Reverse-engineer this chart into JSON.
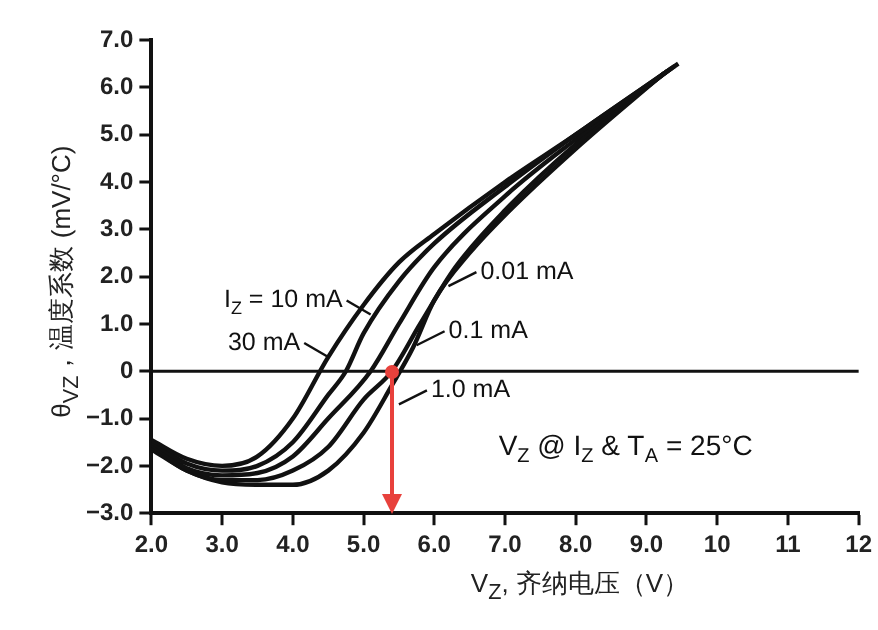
{
  "chart_data": {
    "type": "line",
    "xlabel": "V$_{Z}$, 齐纳电压（V）",
    "ylabel": "θ$_{VZ}$，温度系数 (mV/°C)",
    "xlim": [
      2,
      12
    ],
    "xticks": [
      {
        "value": 2,
        "label": "2.0"
      },
      {
        "value": 3,
        "label": "3.0"
      },
      {
        "value": 4,
        "label": "4.0"
      },
      {
        "value": 5,
        "label": "5.0"
      },
      {
        "value": 6,
        "label": "6.0"
      },
      {
        "value": 7,
        "label": "7.0"
      },
      {
        "value": 8,
        "label": "8.0"
      },
      {
        "value": 9,
        "label": "9.0"
      },
      10,
      11,
      12
    ],
    "ylim": [
      -3,
      7
    ],
    "yticks": [
      {
        "value": -3,
        "label": "−3.0"
      },
      {
        "value": -2,
        "label": "−2.0"
      },
      {
        "value": -1,
        "label": "−1.0"
      },
      0,
      {
        "value": 1,
        "label": "1.0"
      },
      {
        "value": 2,
        "label": "2.0"
      },
      {
        "value": 3,
        "label": "3.0"
      },
      {
        "value": 4,
        "label": "4.0"
      },
      {
        "value": 5,
        "label": "5.0"
      },
      {
        "value": 6,
        "label": "6.0"
      },
      {
        "value": 7,
        "label": "7.0"
      }
    ],
    "grid": false,
    "legend": false,
    "marker": "none",
    "line_style": "solid",
    "series": [
      {
        "color": "#111111",
        "x": [
          2,
          2.5,
          3,
          3.5,
          4,
          4.5,
          5,
          5.5,
          6,
          7,
          8,
          9.45
        ],
        "values": [
          -1.45,
          -1.85,
          -2,
          -1.8,
          -1,
          0.3,
          1.4,
          2.3,
          2.9,
          4,
          5,
          6.5
        ]
      },
      {
        "color": "#111111",
        "x": [
          2,
          2.5,
          3,
          3.5,
          4,
          4.5,
          4.75,
          5,
          5.5,
          6,
          7,
          8,
          9.4
        ],
        "values": [
          -1.5,
          -1.95,
          -2.1,
          -2,
          -1.5,
          -0.5,
          0,
          0.8,
          1.9,
          2.7,
          3.9,
          5,
          6.45
        ]
      },
      {
        "color": "#111111",
        "x": [
          2,
          2.5,
          3,
          3.5,
          4,
          4.5,
          5.1,
          5.5,
          6,
          7,
          8,
          9.35
        ],
        "values": [
          -1.55,
          -2.05,
          -2.2,
          -2.15,
          -1.8,
          -1,
          0,
          1,
          2.2,
          3.7,
          4.9,
          6.4
        ]
      },
      {
        "color": "#111111",
        "x": [
          2,
          2.5,
          3,
          3.5,
          4,
          4.5,
          5,
          5.4,
          5.8,
          6.3,
          7,
          8,
          9.3
        ],
        "values": [
          -1.6,
          -2.1,
          -2.3,
          -2.3,
          -2.1,
          -1.6,
          -0.6,
          0,
          1,
          2.2,
          3.4,
          4.8,
          6.35
        ]
      },
      {
        "color": "#111111",
        "x": [
          2,
          2.5,
          3,
          3.5,
          4,
          4.5,
          5,
          5.4,
          5.7,
          6,
          6.5,
          7,
          8,
          9.25
        ],
        "values": [
          -1.65,
          -2.1,
          -2.35,
          -2.4,
          -2.4,
          -2.1,
          -1.3,
          -0.3,
          0.5,
          1.5,
          2.5,
          3.3,
          4.7,
          6.3
        ]
      }
    ],
    "ref_lines": [
      {
        "axis": "y",
        "value": 0,
        "color": "#111111"
      },
      {
        "axis": "x",
        "value": 5.4,
        "color": "#e8413c"
      }
    ],
    "annotations": [
      {
        "text": "I$_{Z}$ = 10 mA",
        "x": 5.1,
        "y": 1.2
      },
      {
        "text": "30 mA",
        "x": 4.5,
        "y": 0.3
      },
      {
        "text": "0.01 mA",
        "x": 6.2,
        "y": 1.8
      },
      {
        "text": "0.1 mA",
        "x": 5.75,
        "y": 0.55
      },
      {
        "text": "1.0 mA",
        "x": 5.5,
        "y": -0.7
      },
      "V$_{Z}$ @ I$_{Z}$ & T$_{A}$ = 25°C"
    ]
  }
}
